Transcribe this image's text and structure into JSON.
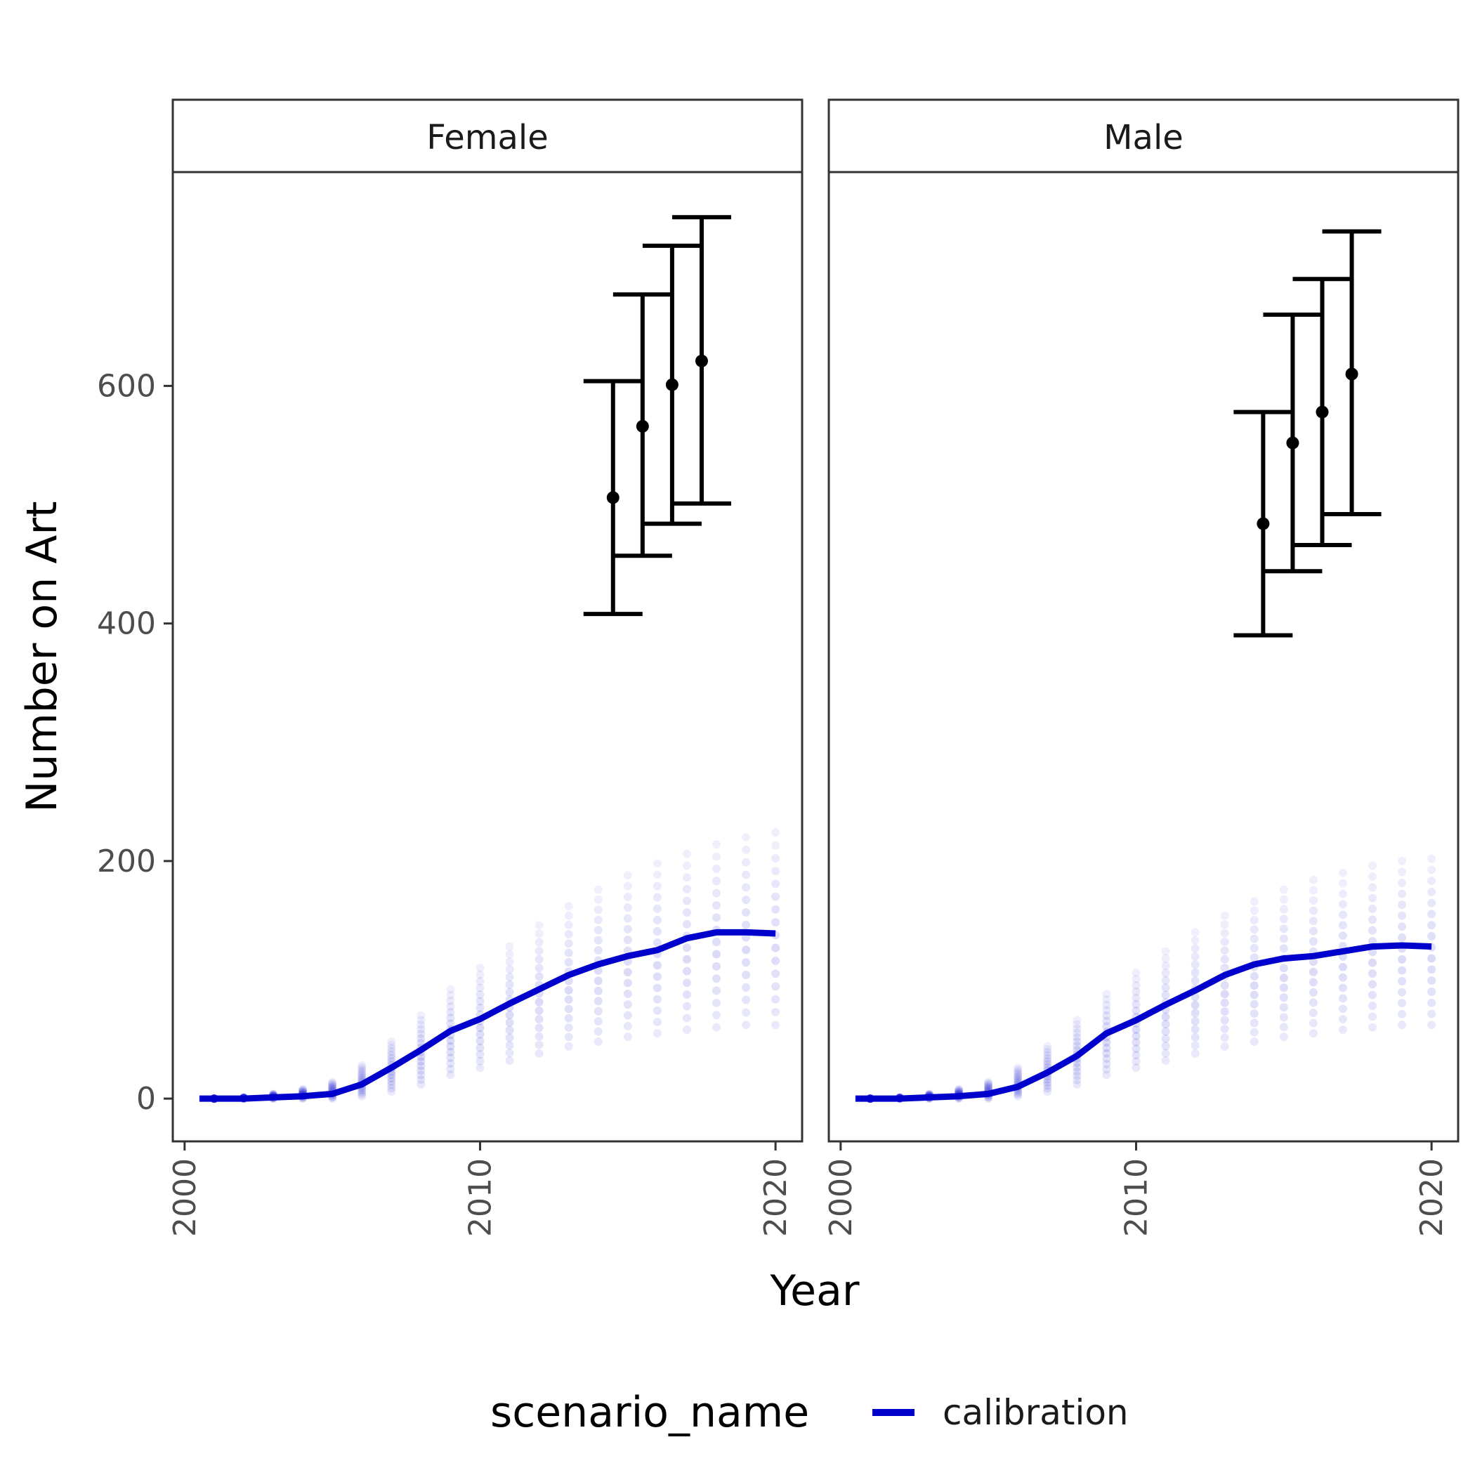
{
  "chart_data": {
    "type": "line",
    "facet_by": "sex",
    "xlabel": "Year",
    "ylabel": "Number on Art",
    "xlim": [
      1999.6,
      2020.9
    ],
    "ylim": [
      -36,
      780
    ],
    "x_ticks": [
      2000,
      2010,
      2020
    ],
    "y_ticks": [
      0,
      200,
      400,
      600
    ],
    "grid": false,
    "legend": {
      "position": "bottom",
      "title": "scenario_name",
      "entries": [
        {
          "label": "calibration",
          "color": "#0000CD"
        }
      ]
    },
    "series_color": "#0000CD",
    "errorbar_color": "#000000",
    "panels": [
      {
        "label": "Female",
        "calibration": {
          "x": [
            2000.5,
            2001,
            2002,
            2003,
            2004,
            2005,
            2006,
            2007,
            2008,
            2009,
            2010,
            2011,
            2012,
            2013,
            2014,
            2015,
            2016,
            2017,
            2018,
            2019,
            2020
          ],
          "y": [
            0,
            0,
            0,
            1,
            2,
            4,
            12,
            26,
            41,
            57,
            67,
            80,
            92,
            104,
            113,
            120,
            125,
            135,
            140,
            140,
            139
          ]
        },
        "simulation_spread": {
          "x": [
            2001,
            2002,
            2003,
            2004,
            2005,
            2006,
            2007,
            2008,
            2009,
            2010,
            2011,
            2012,
            2013,
            2014,
            2015,
            2016,
            2017,
            2018,
            2019,
            2020
          ],
          "low": [
            0,
            0,
            0,
            0,
            0,
            2,
            6,
            12,
            20,
            26,
            32,
            38,
            44,
            48,
            52,
            55,
            58,
            60,
            62,
            62
          ],
          "high": [
            0,
            1,
            4,
            8,
            14,
            28,
            48,
            70,
            92,
            110,
            128,
            146,
            162,
            176,
            188,
            198,
            206,
            214,
            220,
            224
          ]
        },
        "targets": [
          {
            "x": 2014.5,
            "y": 506,
            "lower": 408,
            "upper": 604
          },
          {
            "x": 2015.5,
            "y": 566,
            "lower": 457,
            "upper": 677
          },
          {
            "x": 2016.5,
            "y": 601,
            "lower": 484,
            "upper": 718
          },
          {
            "x": 2017.5,
            "y": 621,
            "lower": 501,
            "upper": 742
          }
        ]
      },
      {
        "label": "Male",
        "calibration": {
          "x": [
            2000.5,
            2001,
            2002,
            2003,
            2004,
            2005,
            2006,
            2007,
            2008,
            2009,
            2010,
            2011,
            2012,
            2013,
            2014,
            2015,
            2016,
            2017,
            2018,
            2019,
            2020
          ],
          "y": [
            0,
            0,
            0,
            1,
            2,
            4,
            10,
            22,
            36,
            55,
            66,
            79,
            91,
            104,
            113,
            118,
            120,
            124,
            128,
            129,
            128
          ]
        },
        "simulation_spread": {
          "x": [
            2001,
            2002,
            2003,
            2004,
            2005,
            2006,
            2007,
            2008,
            2009,
            2010,
            2011,
            2012,
            2013,
            2014,
            2015,
            2016,
            2017,
            2018,
            2019,
            2020
          ],
          "low": [
            0,
            0,
            0,
            0,
            0,
            2,
            6,
            12,
            20,
            26,
            32,
            38,
            44,
            48,
            52,
            55,
            58,
            60,
            62,
            62
          ],
          "high": [
            0,
            1,
            4,
            8,
            14,
            26,
            44,
            66,
            88,
            106,
            124,
            140,
            154,
            166,
            176,
            184,
            190,
            196,
            200,
            202
          ]
        },
        "targets": [
          {
            "x": 2014.3,
            "y": 484,
            "lower": 390,
            "upper": 578
          },
          {
            "x": 2015.3,
            "y": 552,
            "lower": 444,
            "upper": 660
          },
          {
            "x": 2016.3,
            "y": 578,
            "lower": 466,
            "upper": 690
          },
          {
            "x": 2017.3,
            "y": 610,
            "lower": 492,
            "upper": 730
          }
        ]
      }
    ]
  }
}
